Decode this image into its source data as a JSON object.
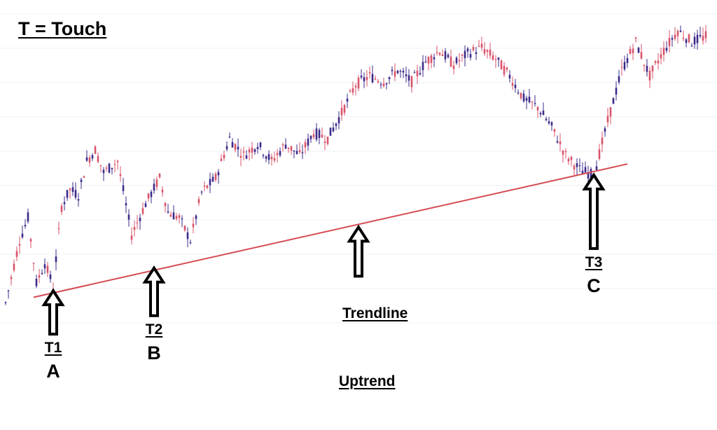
{
  "legend_text": "T = Touch",
  "colors": {
    "background": "#ffffff",
    "grid": "#eef0f5",
    "bull_candle": "#3d2a8a",
    "bear_candle": "#d9536a",
    "trendline": "#d64a52",
    "arrow": "#000000"
  },
  "chart_data": {
    "type": "candlestick",
    "title": "",
    "xlabel": "",
    "ylabel": "",
    "grid": true,
    "price_range": [
      0,
      100
    ],
    "price_path": [
      [
        0,
        8
      ],
      [
        5,
        30
      ],
      [
        8,
        38
      ],
      [
        11,
        15
      ],
      [
        14,
        22
      ],
      [
        17,
        14
      ],
      [
        20,
        42
      ],
      [
        23,
        48
      ],
      [
        26,
        46
      ],
      [
        29,
        58
      ],
      [
        32,
        62
      ],
      [
        35,
        54
      ],
      [
        40,
        58
      ],
      [
        45,
        32
      ],
      [
        50,
        43
      ],
      [
        55,
        52
      ],
      [
        58,
        40
      ],
      [
        62,
        38
      ],
      [
        66,
        30
      ],
      [
        70,
        47
      ],
      [
        75,
        52
      ],
      [
        80,
        66
      ],
      [
        85,
        60
      ],
      [
        90,
        64
      ],
      [
        95,
        58
      ],
      [
        100,
        64
      ],
      [
        105,
        60
      ],
      [
        110,
        68
      ],
      [
        115,
        66
      ],
      [
        120,
        75
      ],
      [
        125,
        85
      ],
      [
        130,
        88
      ],
      [
        135,
        86
      ],
      [
        140,
        90
      ],
      [
        145,
        86
      ],
      [
        150,
        93
      ],
      [
        155,
        97
      ],
      [
        160,
        92
      ],
      [
        165,
        96
      ],
      [
        170,
        98
      ],
      [
        175,
        94
      ],
      [
        180,
        88
      ],
      [
        185,
        80
      ],
      [
        190,
        77
      ],
      [
        195,
        70
      ],
      [
        200,
        60
      ],
      [
        205,
        55
      ],
      [
        210,
        53
      ],
      [
        215,
        72
      ],
      [
        220,
        90
      ],
      [
        225,
        100
      ],
      [
        230,
        88
      ],
      [
        235,
        97
      ],
      [
        240,
        104
      ],
      [
        245,
        100
      ],
      [
        250,
        102
      ]
    ],
    "trendline": {
      "label": "Trendline",
      "from": {
        "x": 10,
        "y": 10
      },
      "to": {
        "x": 222,
        "y": 57
      }
    },
    "annotations": [
      {
        "touch": "T1",
        "point": "A",
        "x": 17,
        "y": 13.8
      },
      {
        "touch": "T2",
        "point": "B",
        "x": 53,
        "y": 21.8
      },
      {
        "touch": "T3",
        "point": "C",
        "x": 210,
        "y": 54.6
      }
    ],
    "trendline_arrow_x": 126,
    "caption": "Uptrend"
  }
}
